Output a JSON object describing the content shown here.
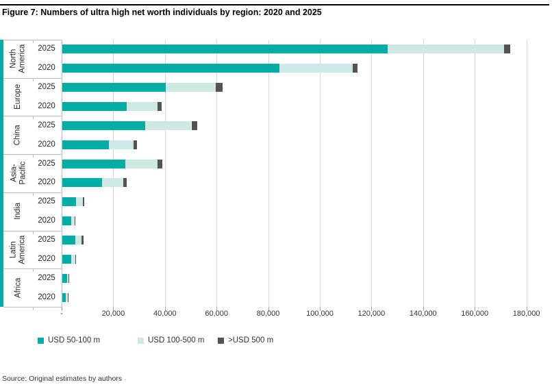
{
  "figure": {
    "title": "Figure 7: Numbers of ultra high net worth individuals by region: 2020 and 2025",
    "source": "Source: Original estimates by authors"
  },
  "colors": {
    "teal": "#00aca6",
    "light_teal": "#cde8e5",
    "dark_gray": "#555352",
    "gridline": "#d6d6d6",
    "border": "#bfbfbf"
  },
  "chart_data": {
    "type": "bar",
    "orientation": "horizontal",
    "stacked": true,
    "title": "Figure 7: Numbers of ultra high net worth individuals by region: 2020 and 2025",
    "grid": true,
    "legend_position": "bottom-left",
    "x_axis": {
      "min": 0,
      "max": 180000,
      "tick_interval": 20000,
      "tick_labels": [
        "-",
        "20,000",
        "40,000",
        "60,000",
        "80,000",
        "100,000",
        "120,000",
        "140,000",
        "160,000",
        "180,000"
      ]
    },
    "series": [
      {
        "name": "USD 50-100 m",
        "color_key": "teal"
      },
      {
        "name": "USD 100-500 m",
        "color_key": "light_teal"
      },
      {
        "name": ">USD 500 m",
        "color_key": "dark_gray"
      }
    ],
    "groups": [
      {
        "region": "North America",
        "region_lines": "North\nAmerica",
        "rows": [
          {
            "year": "2025",
            "values": [
              126000,
              45000,
              2500
            ]
          },
          {
            "year": "2020",
            "values": [
              84000,
              28500,
              1800
            ]
          }
        ]
      },
      {
        "region": "Europe",
        "region_lines": "Europe",
        "rows": [
          {
            "year": "2025",
            "values": [
              40000,
              19500,
              2500
            ]
          },
          {
            "year": "2020",
            "values": [
              25000,
              12000,
              1500
            ]
          }
        ]
      },
      {
        "region": "China",
        "region_lines": "China",
        "rows": [
          {
            "year": "2025",
            "values": [
              32000,
              18000,
              2200
            ]
          },
          {
            "year": "2020",
            "values": [
              18000,
              9500,
              1300
            ]
          }
        ]
      },
      {
        "region": "Asia-Pacific",
        "region_lines": "Asia-\nPacific",
        "rows": [
          {
            "year": "2025",
            "values": [
              24500,
              12500,
              1800
            ]
          },
          {
            "year": "2020",
            "values": [
              15500,
              8000,
              1400
            ]
          }
        ]
      },
      {
        "region": "India",
        "region_lines": "India",
        "rows": [
          {
            "year": "2025",
            "values": [
              5200,
              2800,
              600
            ]
          },
          {
            "year": "2020",
            "values": [
              3500,
              1300,
              250
            ]
          }
        ]
      },
      {
        "region": "Latin America",
        "region_lines": "Latin\nAmerica",
        "rows": [
          {
            "year": "2025",
            "values": [
              5000,
              2400,
              800
            ]
          },
          {
            "year": "2020",
            "values": [
              3500,
              1500,
              350
            ]
          }
        ]
      },
      {
        "region": "Africa",
        "region_lines": "Africa",
        "rows": [
          {
            "year": "2025",
            "values": [
              1800,
              700,
              150
            ]
          },
          {
            "year": "2020",
            "values": [
              1400,
              600,
              100
            ]
          }
        ]
      }
    ]
  }
}
